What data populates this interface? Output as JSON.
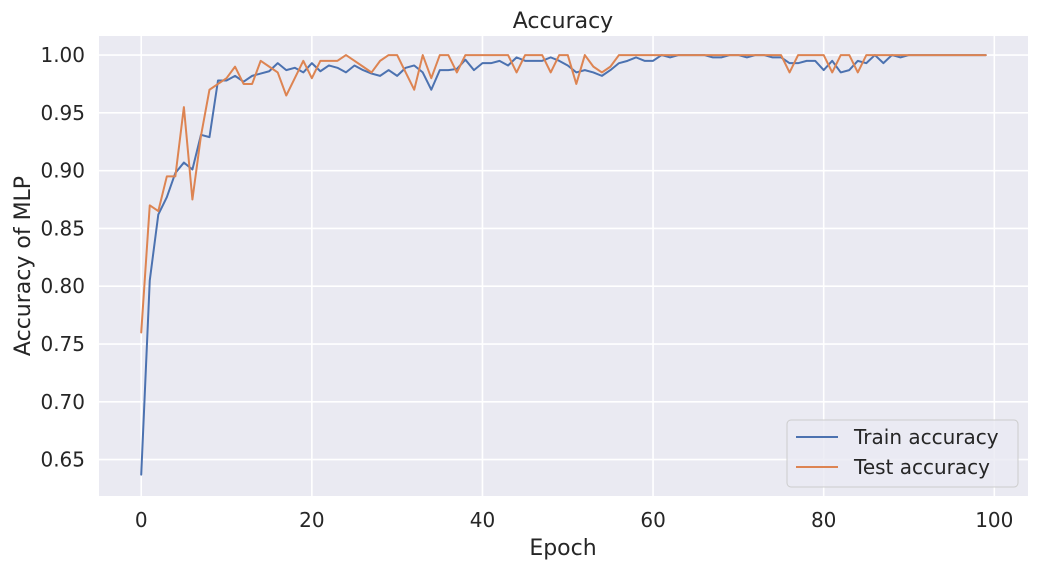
{
  "chart_data": {
    "type": "line",
    "title": "Accuracy",
    "xlabel": "Epoch",
    "ylabel": "Accuracy of MLP",
    "xlim": [
      -4.95,
      103.95
    ],
    "ylim": [
      0.6185,
      1.0165
    ],
    "xticks": [
      0,
      20,
      40,
      60,
      80,
      100
    ],
    "yticks": [
      0.65,
      0.7,
      0.75,
      0.8,
      0.85,
      0.9,
      0.95,
      1.0
    ],
    "xtick_labels": [
      "0",
      "20",
      "40",
      "60",
      "80",
      "100"
    ],
    "ytick_labels": [
      "0.65",
      "0.70",
      "0.75",
      "0.80",
      "0.85",
      "0.90",
      "0.95",
      "1.00"
    ],
    "grid": true,
    "legend_position": "lower-right",
    "background": "#eaeaf2",
    "x": [
      0,
      1,
      2,
      3,
      4,
      5,
      6,
      7,
      8,
      9,
      10,
      11,
      12,
      13,
      14,
      15,
      16,
      17,
      18,
      19,
      20,
      21,
      22,
      23,
      24,
      25,
      26,
      27,
      28,
      29,
      30,
      31,
      32,
      33,
      34,
      35,
      36,
      37,
      38,
      39,
      40,
      41,
      42,
      43,
      44,
      45,
      46,
      47,
      48,
      49,
      50,
      51,
      52,
      53,
      54,
      55,
      56,
      57,
      58,
      59,
      60,
      61,
      62,
      63,
      64,
      65,
      66,
      67,
      68,
      69,
      70,
      71,
      72,
      73,
      74,
      75,
      76,
      77,
      78,
      79,
      80,
      81,
      82,
      83,
      84,
      85,
      86,
      87,
      88,
      89,
      90,
      91,
      92,
      93,
      94,
      95,
      96,
      97,
      98,
      99
    ],
    "series": [
      {
        "name": "Train accuracy",
        "color": "#4c72b0",
        "values": [
          0.637,
          0.805,
          0.862,
          0.877,
          0.898,
          0.907,
          0.901,
          0.931,
          0.929,
          0.978,
          0.978,
          0.982,
          0.977,
          0.982,
          0.984,
          0.986,
          0.993,
          0.987,
          0.989,
          0.985,
          0.993,
          0.986,
          0.991,
          0.989,
          0.985,
          0.991,
          0.987,
          0.984,
          0.982,
          0.987,
          0.982,
          0.989,
          0.991,
          0.985,
          0.97,
          0.987,
          0.987,
          0.988,
          0.996,
          0.987,
          0.993,
          0.993,
          0.995,
          0.991,
          0.998,
          0.995,
          0.995,
          0.995,
          0.998,
          0.995,
          0.991,
          0.985,
          0.987,
          0.985,
          0.982,
          0.987,
          0.993,
          0.995,
          0.998,
          0.995,
          0.995,
          1.0,
          0.998,
          1.0,
          1.0,
          1.0,
          1.0,
          0.998,
          0.998,
          1.0,
          1.0,
          0.998,
          1.0,
          1.0,
          0.998,
          0.998,
          0.993,
          0.993,
          0.995,
          0.995,
          0.987,
          0.995,
          0.985,
          0.987,
          0.995,
          0.993,
          1.0,
          0.993,
          1.0,
          0.998,
          1.0,
          1.0,
          1.0,
          1.0,
          1.0,
          1.0,
          1.0,
          1.0,
          1.0,
          1.0
        ]
      },
      {
        "name": "Test accuracy",
        "color": "#dd8452",
        "values": [
          0.76,
          0.87,
          0.865,
          0.895,
          0.895,
          0.955,
          0.875,
          0.93,
          0.97,
          0.975,
          0.98,
          0.99,
          0.975,
          0.975,
          0.995,
          0.99,
          0.985,
          0.965,
          0.98,
          0.995,
          0.98,
          0.995,
          0.995,
          0.995,
          1.0,
          0.995,
          0.99,
          0.985,
          0.995,
          1.0,
          1.0,
          0.985,
          0.97,
          1.0,
          0.98,
          1.0,
          1.0,
          0.985,
          1.0,
          1.0,
          1.0,
          1.0,
          1.0,
          1.0,
          0.985,
          1.0,
          1.0,
          1.0,
          0.985,
          1.0,
          1.0,
          0.975,
          1.0,
          0.99,
          0.985,
          0.99,
          1.0,
          1.0,
          1.0,
          1.0,
          1.0,
          1.0,
          1.0,
          1.0,
          1.0,
          1.0,
          1.0,
          1.0,
          1.0,
          1.0,
          1.0,
          1.0,
          1.0,
          1.0,
          1.0,
          1.0,
          0.985,
          1.0,
          1.0,
          1.0,
          1.0,
          0.985,
          1.0,
          1.0,
          0.985,
          1.0,
          1.0,
          1.0,
          1.0,
          1.0,
          1.0,
          1.0,
          1.0,
          1.0,
          1.0,
          1.0,
          1.0,
          1.0,
          1.0,
          1.0
        ]
      }
    ]
  }
}
